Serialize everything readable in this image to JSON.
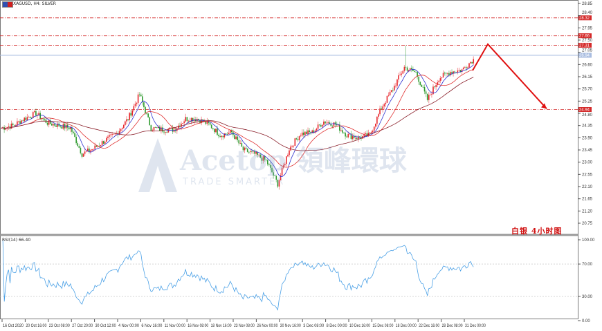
{
  "header": {
    "title": "XAGUSD, H4: SILVER"
  },
  "rsi_header": {
    "title": "RSI(14) 66.40"
  },
  "annotation": {
    "text": "白银  4小时图"
  },
  "watermark": {
    "brand": "Acetop 領峰環球",
    "tagline": "TRADE SMARTER"
  },
  "colors": {
    "up": "#e8262c",
    "down": "#2e9a2e",
    "ma_fast": "#2b2fd0",
    "ma_mid": "#e03030",
    "ma_slow": "#8a1f2a",
    "level": "#d42a2a",
    "current": "#a9bde0",
    "rsi": "#4aa0e6",
    "arrow": "#e01010"
  },
  "chart_data": [
    {
      "type": "candlestick",
      "symbol": "XAGUSD",
      "timeframe": "H4",
      "ylim": [
        20.75,
        28.85
      ],
      "yticks": [
        "28.85",
        "28.40",
        "27.95",
        "27.50",
        "27.05",
        "26.60",
        "26.15",
        "25.70",
        "25.25",
        "24.80",
        "24.35",
        "23.90",
        "23.45",
        "23.00",
        "22.55",
        "22.10",
        "21.65",
        "21.20",
        "20.75"
      ],
      "xticks": [
        "16 Oct 2020",
        "20 Oct 16:00",
        "23 Oct 08:00",
        "27 Oct 20:00",
        "30 Oct 12:00",
        "4 Nov 00:00",
        "6 Nov 16:00",
        "11 Nov 00:00",
        "16 Nov 08:00",
        "18 Nov 16:00",
        "23 Nov 08:00",
        "26 Nov 00:00",
        "30 Nov 16:00",
        "3 Dec 08:00",
        "8 Dec 00:00",
        "10 Dec 16:00",
        "15 Dec 08:00",
        "18 Dec 00:00",
        "22 Dec 16:00",
        "28 Dec 08:00",
        "31 Dec 00:00"
      ],
      "approx_closes": [
        24.26,
        24.35,
        24.6,
        24.8,
        24.45,
        24.35,
        24.26,
        23.3,
        23.5,
        23.8,
        24.05,
        24.6,
        25.5,
        24.26,
        24.2,
        24.2,
        24.6,
        24.6,
        24.4,
        24.0,
        24.1,
        23.45,
        23.3,
        23.05,
        22.2,
        23.5,
        24.05,
        24.1,
        24.5,
        24.4,
        24.0,
        23.9,
        24.0,
        25.0,
        25.7,
        26.5,
        26.3,
        25.3,
        26.1,
        26.33,
        26.4,
        26.8
      ],
      "levels": [
        {
          "price": 28.32,
          "label": "28.32",
          "style": "dash-dot"
        },
        {
          "price": 27.66,
          "label": "27.66",
          "style": "dash-dot"
        },
        {
          "price": 27.31,
          "label": "27.31",
          "style": "dash-dot"
        },
        {
          "price": 24.94,
          "label": "24.94",
          "style": "dash-dot"
        }
      ],
      "current_price": {
        "price": 26.94,
        "label": "26.94"
      },
      "moving_averages": [
        "fast (blue)",
        "medium (red)",
        "slow (dark red)"
      ],
      "forecast_arrow": [
        26.38,
        27.35,
        24.97
      ]
    },
    {
      "type": "line",
      "name": "RSI(14)",
      "last_value": 66.4,
      "ylim": [
        0,
        100
      ],
      "yticks": [
        "100.00",
        "70.00",
        "30.00",
        "0.00"
      ],
      "levels": [
        70,
        30
      ]
    }
  ]
}
